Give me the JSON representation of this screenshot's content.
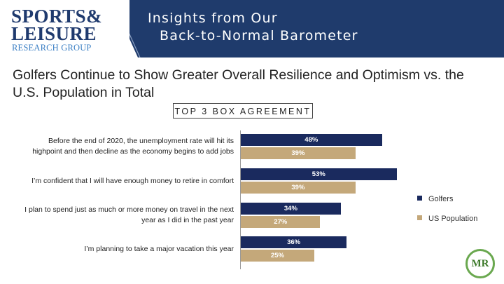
{
  "logo": {
    "line1": "SPORTS&",
    "line2": "LEISURE",
    "line3": "RESEARCH GROUP"
  },
  "banner": {
    "line1": "Insights from Our",
    "line2": "Back-to-Normal Barometer"
  },
  "slide_title": "Golfers Continue to Show Greater Overall Resilience and Optimism vs. the U.S. Population in Total",
  "colors": {
    "banner": "#1f3b6c",
    "golfers": "#1a2a5e",
    "us_population": "#c4a87a"
  },
  "badge": {
    "text": "MR"
  },
  "chart_data": {
    "type": "bar",
    "orientation": "horizontal",
    "title": "TOP 3 BOX AGREEMENT",
    "categories": [
      "Before the end of 2020, the unemployment rate will hit its highpoint and then decline as the economy begins to add jobs",
      "I’m confident that I will have enough money to retire in comfort",
      "I plan to spend just as much or more money on travel in the next year as I did in the past year",
      "I’m planning to take a major vacation this year"
    ],
    "series": [
      {
        "name": "Golfers",
        "values": [
          48,
          53,
          34,
          36
        ],
        "labels": [
          "48%",
          "53%",
          "34%",
          "36%"
        ]
      },
      {
        "name": "US Population",
        "values": [
          39,
          39,
          27,
          25
        ],
        "labels": [
          "39%",
          "39%",
          "27%",
          "25%"
        ]
      }
    ],
    "xlim": [
      0,
      100
    ],
    "legend": "right",
    "grid": false
  }
}
